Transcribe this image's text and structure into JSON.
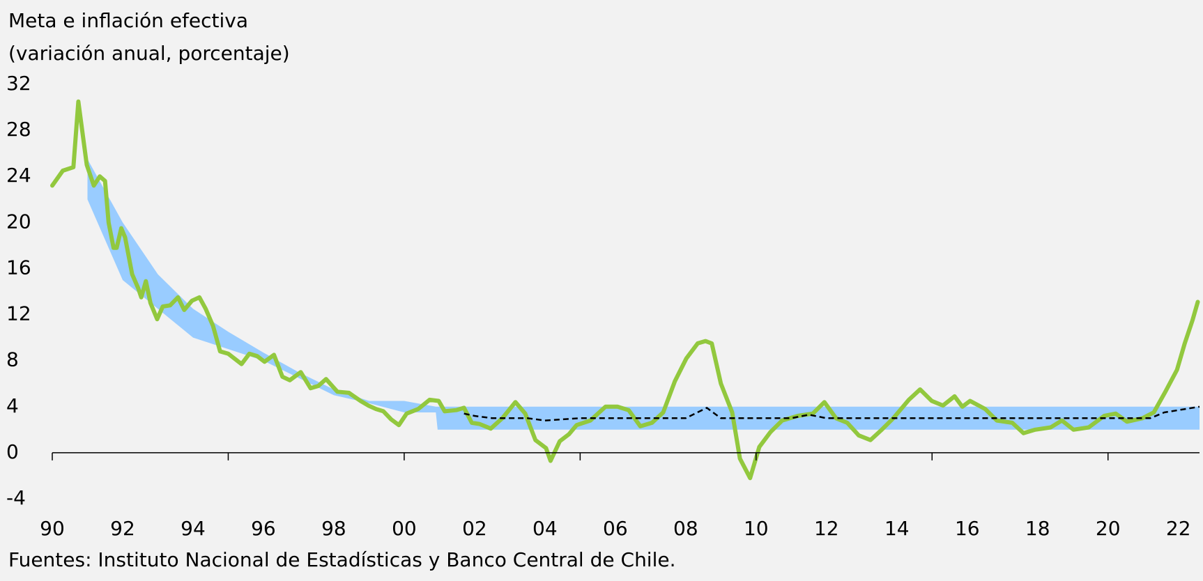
{
  "chart_data": {
    "type": "line",
    "title": "Meta e inflación efectiva",
    "subtitle": "(variación anual, porcentaje)",
    "source": "Fuentes: Instituto Nacional de Estadísticas y Banco Central de Chile.",
    "xlim": [
      1990,
      2022.6
    ],
    "ylim": [
      -4,
      32
    ],
    "yticks": [
      32,
      28,
      24,
      20,
      16,
      12,
      8,
      4,
      0,
      -4
    ],
    "xticks": [
      {
        "value": 1990,
        "label": "90"
      },
      {
        "value": 1992,
        "label": "92"
      },
      {
        "value": 1994,
        "label": "94"
      },
      {
        "value": 1996,
        "label": "96"
      },
      {
        "value": 1998,
        "label": "98"
      },
      {
        "value": 2000,
        "label": "00"
      },
      {
        "value": 2002,
        "label": "02"
      },
      {
        "value": 2004,
        "label": "04"
      },
      {
        "value": 2006,
        "label": "06"
      },
      {
        "value": 2008,
        "label": "08"
      },
      {
        "value": 2010,
        "label": "10"
      },
      {
        "value": 2012,
        "label": "12"
      },
      {
        "value": 2014,
        "label": "14"
      },
      {
        "value": 2016,
        "label": "16"
      },
      {
        "value": 2018,
        "label": "18"
      },
      {
        "value": 2020,
        "label": "20"
      },
      {
        "value": 2022,
        "label": "22"
      }
    ],
    "xtick_marks": [
      1990,
      1995,
      2000,
      2005,
      2010,
      2015,
      2020
    ],
    "grid": false,
    "series": [
      {
        "type": "band",
        "color": "#99ccff",
        "x": [
          1991.0,
          1992.0,
          1993.0,
          1994.0,
          1995.0,
          1996.0,
          1997.0,
          1998.0,
          1999.0,
          2000.0,
          2000.9,
          2000.95,
          2022.6
        ],
        "lower": [
          22,
          15,
          12.5,
          10,
          9,
          8,
          6.5,
          5,
          4.3,
          3.5,
          3.5,
          2,
          2
        ],
        "upper": [
          25.5,
          20,
          15.5,
          12.5,
          10.5,
          8.7,
          7,
          5.5,
          4.5,
          4.5,
          4,
          4,
          4
        ]
      },
      {
        "type": "line",
        "color": "#92c83e",
        "x": [
          1990.0,
          1990.3,
          1990.6,
          1990.74,
          1990.98,
          1991.18,
          1991.35,
          1991.5,
          1991.6,
          1991.74,
          1991.83,
          1991.96,
          1992.07,
          1992.27,
          1992.44,
          1992.53,
          1992.66,
          1992.79,
          1992.98,
          1993.14,
          1993.35,
          1993.57,
          1993.75,
          1993.97,
          1994.18,
          1994.36,
          1994.57,
          1994.77,
          1995.0,
          1995.17,
          1995.38,
          1995.6,
          1995.82,
          1996.03,
          1996.3,
          1996.54,
          1996.75,
          1997.06,
          1997.34,
          1997.56,
          1997.78,
          1998.1,
          1998.43,
          1998.76,
          1998.98,
          1999.2,
          1999.41,
          1999.63,
          1999.85,
          2000.07,
          2000.4,
          2000.72,
          2000.98,
          2001.15,
          2001.48,
          2001.7,
          2001.92,
          2002.14,
          2002.46,
          2002.79,
          2003.16,
          2003.44,
          2003.73,
          2004.03,
          2004.16,
          2004.42,
          2004.68,
          2004.9,
          2005.29,
          2005.72,
          2006.06,
          2006.38,
          2006.71,
          2007.04,
          2007.36,
          2007.69,
          2008.02,
          2008.34,
          2008.56,
          2008.74,
          2009.0,
          2009.32,
          2009.54,
          2009.83,
          2010.09,
          2010.41,
          2010.74,
          2011.18,
          2011.61,
          2011.94,
          2012.27,
          2012.59,
          2012.92,
          2013.25,
          2013.57,
          2013.9,
          2014.34,
          2014.66,
          2014.99,
          2015.31,
          2015.64,
          2015.86,
          2016.08,
          2016.51,
          2016.84,
          2017.28,
          2017.6,
          2017.93,
          2018.37,
          2018.69,
          2019.02,
          2019.45,
          2019.89,
          2020.22,
          2020.54,
          2020.98,
          2021.3,
          2021.63,
          2021.96,
          2022.18,
          2022.4,
          2022.55
        ],
        "values": [
          23.2,
          24.5,
          24.8,
          30.5,
          25,
          23.2,
          24,
          23.6,
          20,
          17.8,
          17.8,
          19.5,
          18.7,
          15.5,
          14.3,
          13.5,
          14.9,
          13,
          11.6,
          12.7,
          12.8,
          13.5,
          12.4,
          13.2,
          13.5,
          12.5,
          11,
          8.8,
          8.6,
          8.2,
          7.7,
          8.6,
          8.4,
          7.9,
          8.5,
          6.6,
          6.3,
          7,
          5.6,
          5.8,
          6.4,
          5.3,
          5.2,
          4.5,
          4.1,
          3.8,
          3.6,
          2.9,
          2.4,
          3.4,
          3.8,
          4.6,
          4.5,
          3.6,
          3.7,
          3.9,
          2.6,
          2.5,
          2.1,
          3,
          4.4,
          3.4,
          1.1,
          0.4,
          -0.7,
          1,
          1.6,
          2.4,
          2.8,
          4,
          4,
          3.7,
          2.3,
          2.6,
          3.5,
          6.2,
          8.2,
          9.5,
          9.7,
          9.5,
          6,
          3.5,
          -0.5,
          -2.2,
          0.5,
          1.8,
          2.8,
          3.2,
          3.4,
          4.4,
          3,
          2.6,
          1.5,
          1.1,
          2,
          3,
          4.6,
          5.5,
          4.5,
          4.1,
          4.9,
          4,
          4.5,
          3.8,
          2.8,
          2.6,
          1.7,
          2,
          2.2,
          2.8,
          2,
          2.2,
          3.2,
          3.4,
          2.7,
          3,
          3.5,
          5.3,
          7.2,
          9.5,
          11.5,
          13.1
        ]
      },
      {
        "type": "dashed",
        "color": "#000000",
        "x": [
          2001.7,
          2002.0,
          2002.5,
          2003.5,
          2004.0,
          2005.0,
          2008.0,
          2008.6,
          2009.0,
          2011.0,
          2011.5,
          2012.0,
          2021.2,
          2021.6,
          2022.6
        ],
        "values": [
          3.4,
          3.2,
          3,
          3,
          2.8,
          3,
          3,
          3.9,
          3,
          3,
          3.3,
          3,
          3,
          3.5,
          4
        ]
      }
    ]
  }
}
